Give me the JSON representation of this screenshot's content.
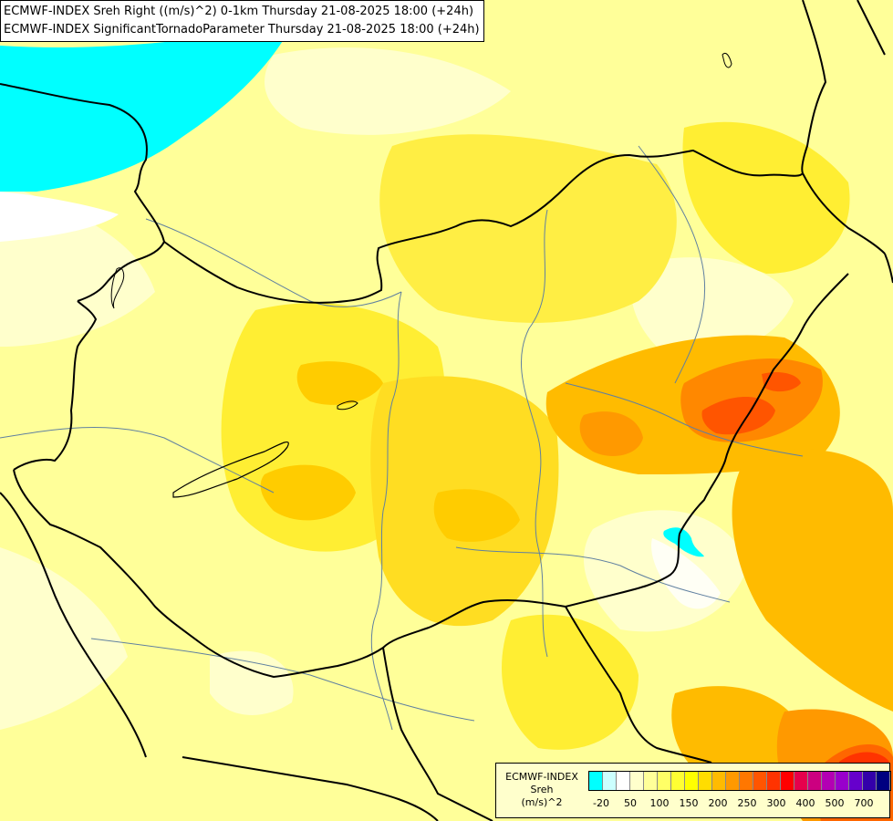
{
  "header": {
    "line1": "ECMWF-INDEX Sreh Right ((m/s)^2) 0-1km Thursday 21-08-2025 18:00 (+24h)",
    "line2": "ECMWF-INDEX SignificantTornadoParameter Thursday 21-08-2025 18:00 (+24h)"
  },
  "legend": {
    "line1": "ECMWF-INDEX",
    "line2": "Sreh",
    "line3": "(m/s)^2",
    "colors": [
      "#00ffff",
      "#ccffff",
      "#ffffff",
      "#ffffcc",
      "#ffff99",
      "#ffff66",
      "#ffff33",
      "#ffff00",
      "#ffdd00",
      "#ffbb00",
      "#ff9900",
      "#ff7700",
      "#ff5500",
      "#ff3300",
      "#ff0000",
      "#e6004c",
      "#cc0080",
      "#b300b3",
      "#9900cc",
      "#6600cc",
      "#3300aa",
      "#000080"
    ],
    "labels": [
      "-20",
      "50",
      "100",
      "150",
      "200",
      "250",
      "300",
      "400",
      "500",
      "700"
    ]
  },
  "map": {
    "cyan_color": "#00ffff",
    "orange_color": "#ffa500",
    "red_color": "#ff6600"
  }
}
